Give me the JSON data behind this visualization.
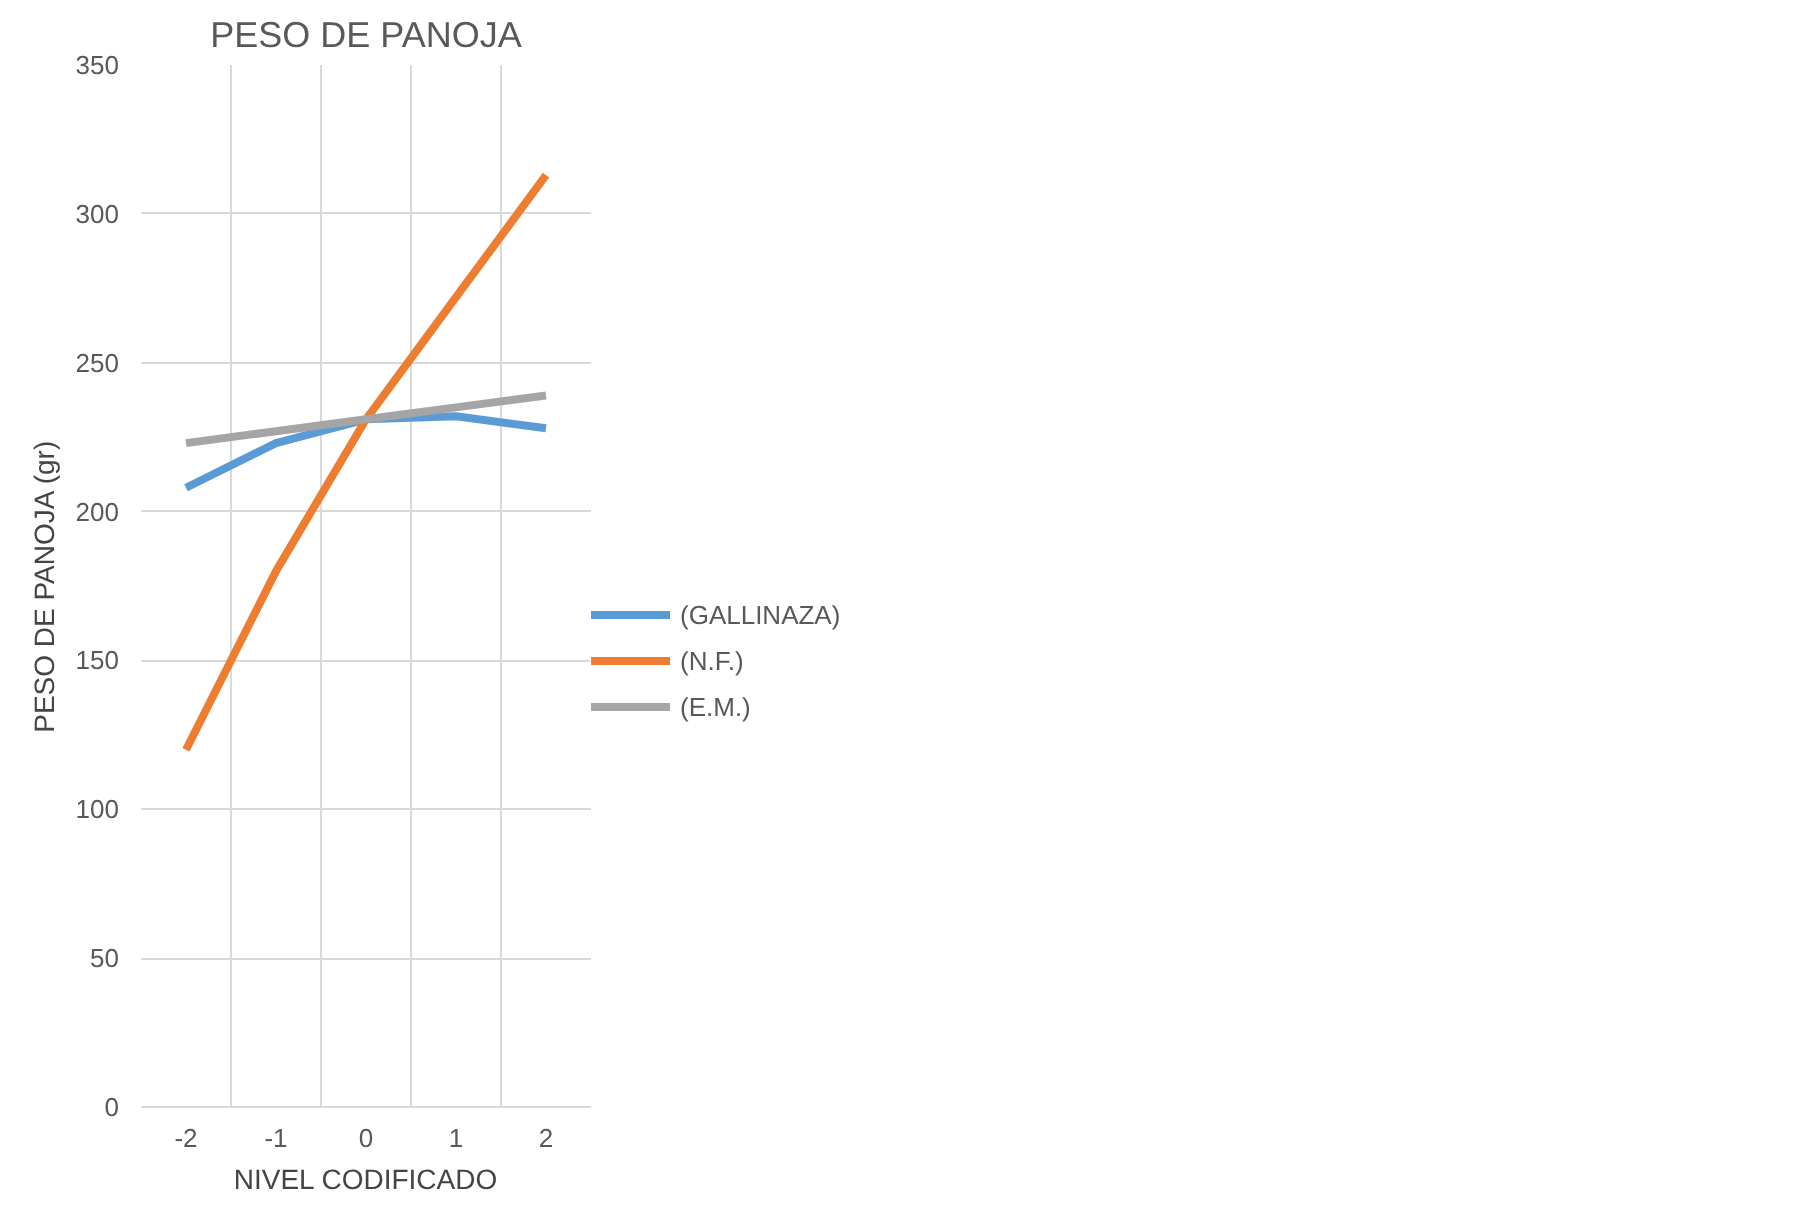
{
  "chart_data": {
    "type": "line",
    "title": "PESO DE PANOJA",
    "xlabel": "NIVEL CODIFICADO",
    "ylabel": "PESO DE PANOJA (gr)",
    "categories": [
      "-2",
      "-1",
      "0",
      "1",
      "2"
    ],
    "series": [
      {
        "name": "(GALLINAZA)",
        "color": "#5b9bd5",
        "values": [
          208,
          223,
          231,
          232,
          228
        ]
      },
      {
        "name": "(N.F.)",
        "color": "#ed7d31",
        "values": [
          120,
          180,
          231,
          272,
          313
        ]
      },
      {
        "name": "(E.M.)",
        "color": "#a5a5a5",
        "values": [
          223,
          227,
          231,
          235,
          239
        ]
      }
    ],
    "ylim": [
      0,
      350
    ],
    "yticks": [
      0,
      50,
      100,
      150,
      200,
      250,
      300,
      350
    ],
    "grid": true,
    "legend": "right",
    "marker": "none",
    "line_style": "solid"
  }
}
